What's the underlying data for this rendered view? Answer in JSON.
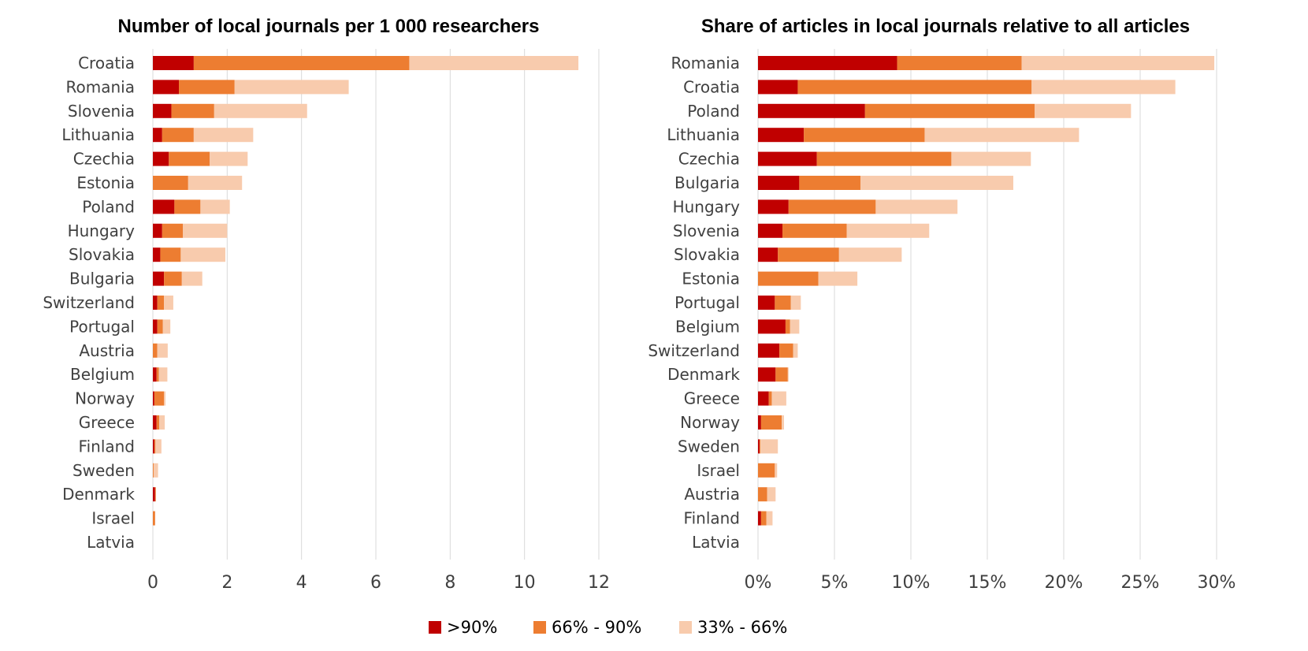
{
  "colors": {
    "s1": "#c00000",
    "s2": "#ed7d31",
    "s3": "#f8cbad",
    "grid": "#d9d9d9"
  },
  "legend": [
    "&gt;90%",
    "66% - 90%",
    "33% - 66%"
  ],
  "chart_data": [
    {
      "type": "bar",
      "orientation": "horizontal",
      "stacked": true,
      "title": "Number of local journals per 1 000 researchers",
      "categories": [
        "Croatia",
        "Romania",
        "Slovenia",
        "Lithuania",
        "Czechia",
        "Estonia",
        "Poland",
        "Hungary",
        "Slovakia",
        "Bulgaria",
        "Switzerland",
        "Portugal",
        "Austria",
        "Belgium",
        "Norway",
        "Greece",
        "Finland",
        "Sweden",
        "Denmark",
        "Israel",
        "Latvia"
      ],
      "series": [
        {
          "name": ">90%",
          "values": [
            1.1,
            0.7,
            0.5,
            0.25,
            0.43,
            0,
            0.58,
            0.25,
            0.2,
            0.3,
            0.12,
            0.12,
            0,
            0.1,
            0.04,
            0.1,
            0.04,
            0,
            0.06,
            0,
            0
          ]
        },
        {
          "name": "66% - 90%",
          "values": [
            5.8,
            1.5,
            1.15,
            0.85,
            1.1,
            0.95,
            0.7,
            0.56,
            0.55,
            0.48,
            0.18,
            0.15,
            0.12,
            0.06,
            0.26,
            0.07,
            0.03,
            0.02,
            0.02,
            0.06,
            0
          ]
        },
        {
          "name": "33% - 66%",
          "values": [
            4.55,
            3.07,
            2.5,
            1.6,
            1.02,
            1.45,
            0.79,
            1.19,
            1.2,
            0.55,
            0.25,
            0.2,
            0.28,
            0.23,
            0.04,
            0.15,
            0.16,
            0.12,
            0,
            0,
            0
          ]
        }
      ],
      "xlim": [
        0,
        12
      ],
      "xticks": [
        "0",
        "2",
        "4",
        "6",
        "8",
        "10",
        "12"
      ],
      "grid": true
    },
    {
      "type": "bar",
      "orientation": "horizontal",
      "stacked": true,
      "title": "Share of articles in local journals relative to all articles",
      "categories": [
        "Romania",
        "Croatia",
        "Poland",
        "Lithuania",
        "Czechia",
        "Bulgaria",
        "Hungary",
        "Slovenia",
        "Slovakia",
        "Estonia",
        "Portugal",
        "Belgium",
        "Switzerland",
        "Denmark",
        "Greece",
        "Norway",
        "Sweden",
        "Israel",
        "Austria",
        "Finland",
        "Latvia"
      ],
      "series": [
        {
          "name": ">90%",
          "values": [
            9.1,
            2.6,
            7.0,
            3.0,
            3.85,
            2.7,
            2.0,
            1.6,
            1.3,
            0,
            1.1,
            1.8,
            1.4,
            1.15,
            0.7,
            0.2,
            0.1,
            0,
            0,
            0.2,
            0
          ]
        },
        {
          "name": "66% - 90%",
          "values": [
            8.15,
            15.3,
            11.1,
            7.9,
            8.8,
            4.0,
            5.7,
            4.2,
            4.0,
            3.95,
            1.05,
            0.3,
            0.9,
            0.8,
            0.2,
            1.35,
            0.05,
            1.1,
            0.6,
            0.35,
            0
          ]
        },
        {
          "name": "33% - 66%",
          "values": [
            12.6,
            9.4,
            6.3,
            10.1,
            5.2,
            10.0,
            5.35,
            5.4,
            4.1,
            2.55,
            0.65,
            0.6,
            0.3,
            0.05,
            0.95,
            0.15,
            1.15,
            0.15,
            0.55,
            0.4,
            0
          ]
        }
      ],
      "xlim": [
        0,
        30
      ],
      "xticks": [
        "0%",
        "5%",
        "10%",
        "15%",
        "20%",
        "25%",
        "30%"
      ],
      "grid": true
    }
  ]
}
